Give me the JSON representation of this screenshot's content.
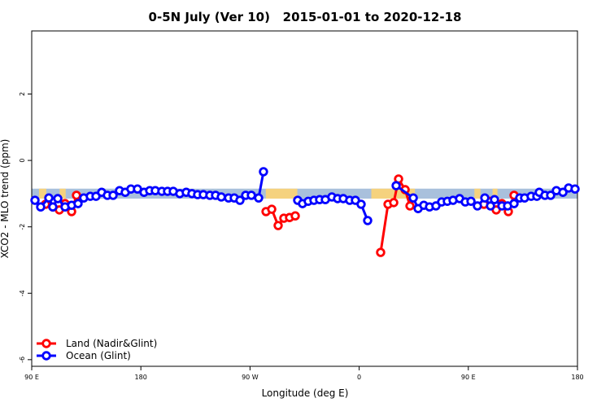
{
  "chart_data": {
    "type": "line",
    "title": "0-5N July (Ver 10)   2015-01-01 to 2020-12-18",
    "xlabel": "Longitude (deg E)",
    "ylabel": "XCO2 - MLO trend (ppm)",
    "xlim": [
      90,
      540
    ],
    "xticks": [
      {
        "value": 90,
        "label": "90 E"
      },
      180,
      {
        "value": 270,
        "label": "90 W"
      },
      {
        "value": 360,
        "label": "0"
      },
      {
        "value": 450,
        "label": "90 E"
      },
      {
        "value": 540,
        "label": "180"
      }
    ],
    "ylim": [
      -6.2,
      3.9
    ],
    "yticks": [
      2,
      0,
      -2,
      -4,
      -6
    ],
    "legend": "lower left",
    "background_band": {
      "range": [
        -1.15,
        -0.85
      ],
      "ocean_color": "#a9c0dc",
      "land_color": "#f5d27e",
      "land_spans": [
        [
          96,
          102
        ],
        [
          113,
          118
        ],
        [
          283,
          309
        ],
        [
          370,
          406
        ],
        [
          455,
          460
        ],
        [
          470,
          474
        ]
      ]
    },
    "series": [
      {
        "name": "Land (Nadir&Glint)",
        "color": "#ff0000",
        "x": [
          101.4,
          107.4,
          112.8,
          117.5,
          122.9,
          126.9,
          null,
          283.2,
          287.9,
          293.2,
          297.9,
          302.6,
          307.3,
          null,
          377.7,
          383.8,
          388.5,
          392.5,
          397.9,
          401.9,
          null,
          462.9,
          468.3,
          473.0,
          477.7,
          483.0,
          487.7
        ],
        "values": [
          -1.32,
          -1.4,
          -1.49,
          -1.3,
          -1.54,
          -1.05,
          null,
          -1.54,
          -1.47,
          -1.96,
          -1.74,
          -1.72,
          -1.67,
          null,
          -2.77,
          -1.32,
          -1.27,
          -0.56,
          -0.88,
          -1.37,
          null,
          -1.32,
          -1.23,
          -1.49,
          -1.3,
          -1.54,
          -1.05
        ]
      },
      {
        "name": "Ocean (Glint)",
        "color": "#0000ff",
        "x": [
          92.7,
          97.4,
          104.1,
          107.4,
          111.5,
          117.5,
          122.9,
          128.2,
          132.9,
          138.3,
          143.0,
          147.7,
          152.4,
          157.1,
          162.4,
          167.1,
          171.8,
          177.2,
          182.6,
          187.3,
          191.9,
          197.3,
          202.0,
          206.7,
          212.1,
          217.4,
          222.1,
          226.8,
          231.5,
          236.9,
          241.6,
          246.3,
          252.3,
          257.0,
          261.7,
          266.4,
          271.1,
          277.1,
          281.1,
          null,
          309.3,
          313.3,
          318.0,
          322.7,
          327.4,
          332.1,
          337.5,
          342.2,
          346.9,
          352.2,
          356.9,
          361.6,
          367.0,
          null,
          390.5,
          404.6,
          408.6,
          413.3,
          418.0,
          423.3,
          428.0,
          432.7,
          437.4,
          442.8,
          447.5,
          452.2,
          457.5,
          463.6,
          468.3,
          471.6,
          477.7,
          482.4,
          487.7,
          492.4,
          496.4,
          501.8,
          506.5,
          508.5,
          513.2,
          517.9,
          522.6,
          528.0,
          532.7,
          538.0
        ],
        "values": [
          -1.2,
          -1.4,
          -1.13,
          -1.4,
          -1.15,
          -1.4,
          -1.35,
          -1.3,
          -1.13,
          -1.08,
          -1.08,
          -0.96,
          -1.05,
          -1.05,
          -0.91,
          -0.96,
          -0.86,
          -0.86,
          -0.96,
          -0.91,
          -0.91,
          -0.93,
          -0.93,
          -0.93,
          -1.0,
          -0.96,
          -1.0,
          -1.03,
          -1.03,
          -1.05,
          -1.05,
          -1.1,
          -1.13,
          -1.13,
          -1.2,
          -1.05,
          -1.05,
          -1.13,
          -0.34,
          null,
          -1.2,
          -1.3,
          -1.23,
          -1.2,
          -1.18,
          -1.18,
          -1.1,
          -1.15,
          -1.15,
          -1.2,
          -1.2,
          -1.32,
          -1.81,
          null,
          -0.76,
          -1.13,
          -1.45,
          -1.35,
          -1.4,
          -1.37,
          -1.25,
          -1.23,
          -1.2,
          -1.15,
          -1.25,
          -1.23,
          -1.37,
          -1.13,
          -1.37,
          -1.18,
          -1.37,
          -1.37,
          -1.3,
          -1.13,
          -1.13,
          -1.08,
          -1.08,
          -0.96,
          -1.05,
          -1.05,
          -0.91,
          -0.96,
          -0.83,
          -0.86
        ]
      }
    ]
  }
}
